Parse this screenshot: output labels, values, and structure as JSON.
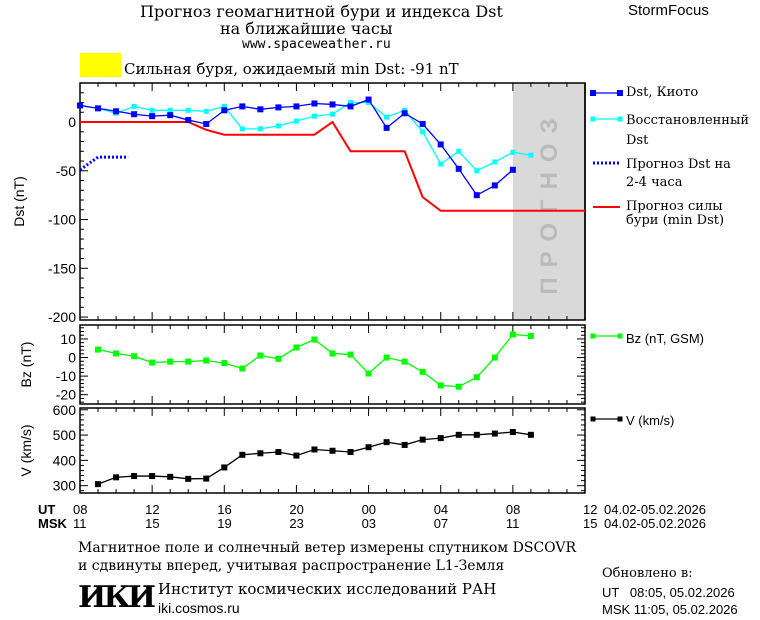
{
  "header": {
    "title_line1": "Прогноз геомагнитной бури и индекса Dst",
    "title_line2": "на ближайшие часы",
    "site": "www.spaceweather.ru",
    "brand": "StormFocus",
    "storm_label": "Сильная буря, ожидаемый min Dst: -91 nT",
    "storm_color": "#ffff00"
  },
  "colors": {
    "dst_kyoto": "#0000ff",
    "restored": "#00ffff",
    "forecast": "#0000ff",
    "storm_min": "#ff0000",
    "bz": "#00ff00",
    "v": "#000000",
    "forecast_zone": "#d9d9d9"
  },
  "chart_data": [
    {
      "type": "line",
      "ylabel": "Dst (nT)",
      "ylim": [
        -203,
        40
      ],
      "yticks": [
        "0",
        "-50",
        "-100",
        "-150",
        "-200"
      ],
      "forecast_zone_label": "ПРОГНОЗ",
      "x_hours_utc": [
        "08",
        "09",
        "10",
        "11",
        "12",
        "13",
        "14",
        "15",
        "16",
        "17",
        "18",
        "19",
        "20",
        "21",
        "22",
        "23",
        "00",
        "01",
        "02",
        "03",
        "04",
        "05",
        "06",
        "07",
        "08",
        "09"
      ],
      "series": [
        {
          "name": "Dst, Киото",
          "start": "08",
          "values": [
            17,
            14,
            11,
            8,
            6,
            7,
            2,
            -2,
            12,
            16,
            13,
            15,
            16,
            19,
            18,
            16,
            23,
            -6,
            9,
            -2,
            -23,
            -48,
            -75,
            -65,
            -49
          ]
        },
        {
          "name": "Восстановленный Dst",
          "start": "09",
          "values": [
            14,
            9,
            16,
            12,
            12,
            12,
            11,
            16,
            -7,
            -7,
            -4,
            1,
            6,
            8,
            20,
            20,
            5,
            12,
            -10,
            -43,
            -30,
            -50,
            -41,
            -31,
            -34
          ]
        },
        {
          "name": "Прогноз Dst на 2-4 часа",
          "points": [
            [
              "08",
              -49
            ],
            [
              "09",
              -36
            ],
            [
              "10:40",
              -36
            ]
          ]
        },
        {
          "name": "Прогноз силы бури (min Dst)",
          "points": [
            [
              "08",
              0
            ],
            [
              "14",
              0
            ],
            [
              "15",
              -8
            ],
            [
              "16",
              -13
            ],
            [
              "21",
              -13
            ],
            [
              "22",
              0
            ],
            [
              "23",
              -30
            ],
            [
              "02",
              -30
            ],
            [
              "03",
              -77
            ],
            [
              "04",
              -91
            ],
            [
              "12",
              -91
            ]
          ]
        }
      ]
    },
    {
      "type": "line",
      "ylabel": "Bz (nT)",
      "ylim": [
        -25,
        17.5
      ],
      "yticks": [
        "10",
        "0",
        "-10",
        "-20"
      ],
      "series": [
        {
          "name": "Bz (nT, GSM)",
          "start": "09",
          "values": [
            4.3,
            2.2,
            0.7,
            -2.7,
            -2.2,
            -2.2,
            -1.6,
            -3,
            -5.9,
            1.1,
            -0.7,
            5.4,
            9.7,
            2.2,
            1.6,
            -8.6,
            0,
            -2.2,
            -7.7,
            -15,
            -15.7,
            -10.6,
            0,
            12.4,
            11.6
          ]
        }
      ]
    },
    {
      "type": "line",
      "ylabel": "V (km/s)",
      "ylim": [
        271,
        607
      ],
      "yticks": [
        "600",
        "500",
        "400",
        "300"
      ],
      "series": [
        {
          "name": "V (km/s)",
          "start": "09",
          "values": [
            306,
            333,
            338,
            338,
            335,
            327,
            328,
            372,
            422,
            428,
            433,
            419,
            443,
            438,
            433,
            452,
            472,
            461,
            482,
            488,
            501,
            501,
            506,
            512,
            501
          ]
        }
      ]
    }
  ],
  "xaxis": {
    "ut_label": "UT",
    "msk_label": "MSK",
    "ut_ticks": [
      "08",
      "12",
      "16",
      "20",
      "00",
      "04",
      "08",
      "12"
    ],
    "msk_ticks": [
      "11",
      "15",
      "19",
      "23",
      "03",
      "07",
      "11",
      "15"
    ],
    "date_range": "04.02-05.02.2026"
  },
  "footer": {
    "note_line1": "Магнитное поле и солнечный ветер измерены спутником DSCOVR",
    "note_line2": "и сдвинуты вперед, учитывая распространение L1-Земля",
    "logo_text": "ИКИ",
    "institute": "Институт космических исследований РАН",
    "institute_url": "iki.cosmos.ru",
    "updated_label": "Обновлено в:",
    "updated_ut": "UT   08:05, 05.02.2026",
    "updated_msk": "MSK 11:05, 05.02.2026"
  }
}
